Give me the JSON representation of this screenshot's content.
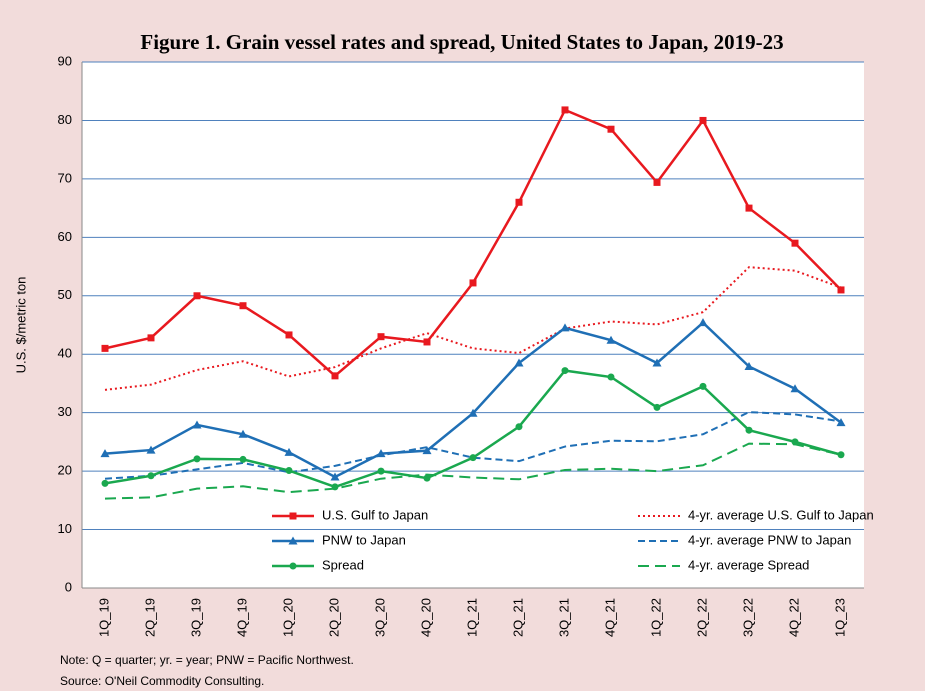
{
  "chart_data": {
    "type": "line",
    "title": "Figure 1.  Grain vessel rates and spread, United States to Japan, 2019-23",
    "y_label": "U.S. $/metric ton",
    "notes": [
      "Note: Q = quarter; yr. = year; PNW = Pacific Northwest.",
      "Source: O'Neil Commodity Consulting."
    ],
    "categories": [
      "1Q_19",
      "2Q_19",
      "3Q_19",
      "4Q_19",
      "1Q_20",
      "2Q_20",
      "3Q_20",
      "4Q_20",
      "1Q_21",
      "2Q_21",
      "3Q_21",
      "4Q_21",
      "1Q_22",
      "2Q_22",
      "3Q_22",
      "4Q_22",
      "1Q_23"
    ],
    "ylim": [
      0,
      90
    ],
    "yticks": [
      0,
      10,
      20,
      30,
      40,
      50,
      60,
      70,
      80,
      90
    ],
    "grid": true,
    "series": [
      {
        "name": "U.S. Gulf to Japan",
        "color": "#e8191f",
        "dash": "solid",
        "marker": "square",
        "values": [
          41,
          42.8,
          50,
          48.3,
          43.3,
          36.3,
          43,
          42.1,
          52.2,
          66,
          81.8,
          78.5,
          69.4,
          80,
          65,
          59,
          51
        ]
      },
      {
        "name": "4-yr. average U.S. Gulf to Japan",
        "color": "#e8191f",
        "dash": "dotted",
        "marker": "none",
        "values": [
          33.9,
          34.8,
          37.3,
          38.8,
          36.2,
          37.8,
          41,
          43.6,
          41,
          40.2,
          44.4,
          45.6,
          45.1,
          47.2,
          54.9,
          54.3,
          51.4
        ]
      },
      {
        "name": "PNW to Japan",
        "color": "#1f6fb5",
        "dash": "solid",
        "marker": "triangle",
        "values": [
          23,
          23.6,
          27.9,
          26.3,
          23.2,
          19,
          23,
          23.5,
          29.9,
          38.5,
          44.5,
          42.4,
          38.5,
          45.4,
          37.9,
          34.1,
          28.3
        ]
      },
      {
        "name": "4-yr. average PNW to Japan",
        "color": "#1f6fb5",
        "dash": "dashed",
        "marker": "none",
        "values": [
          18.7,
          19.2,
          20.3,
          21.4,
          19.8,
          20.9,
          22.7,
          24.1,
          22.3,
          21.7,
          24.2,
          25.2,
          25.1,
          26.3,
          30.1,
          29.7,
          28.5
        ]
      },
      {
        "name": "Spread",
        "color": "#1aa84f",
        "dash": "solid",
        "marker": "circle",
        "values": [
          17.9,
          19.2,
          22.1,
          22,
          20.1,
          17.3,
          20,
          18.8,
          22.3,
          27.6,
          37.2,
          36.1,
          30.9,
          34.5,
          27,
          25,
          22.8
        ]
      },
      {
        "name": "4-yr. average Spread",
        "color": "#1aa84f",
        "dash": "longdash",
        "marker": "none",
        "values": [
          15.3,
          15.5,
          17,
          17.4,
          16.4,
          17,
          18.7,
          19.4,
          18.9,
          18.6,
          20.2,
          20.4,
          20,
          21,
          24.7,
          24.6,
          22.8
        ]
      }
    ]
  }
}
